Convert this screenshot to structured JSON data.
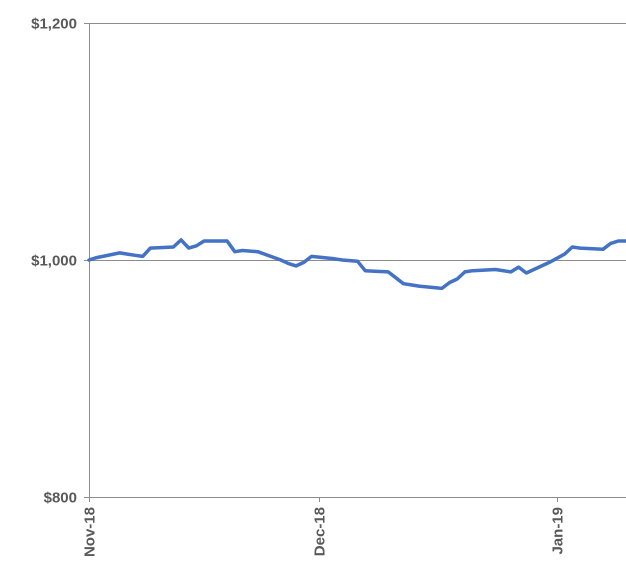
{
  "chart_data": {
    "type": "line",
    "title": "",
    "xlabel": "",
    "ylabel": "",
    "ylim": [
      800,
      1200
    ],
    "y_ticks": [
      "$800",
      "$1,000",
      "$1,200"
    ],
    "y_tick_values": [
      800,
      1000,
      1200
    ],
    "x_ticks": [
      "Nov-18",
      "Dec-18",
      "Jan-19"
    ],
    "x_tick_values": [
      "2018-11-01",
      "2018-12-01",
      "2019-01-01"
    ],
    "xlim": [
      "2018-11-01",
      "2019-01-10"
    ],
    "grid": "horizontal at labeled y ticks",
    "legend": "none",
    "series_color": "#4472C4",
    "series": [
      {
        "x": [
          "2018-11-01",
          "2018-11-02",
          "2018-11-05",
          "2018-11-06",
          "2018-11-07",
          "2018-11-08",
          "2018-11-09",
          "2018-11-12",
          "2018-11-13",
          "2018-11-14",
          "2018-11-15",
          "2018-11-16",
          "2018-11-19",
          "2018-11-20",
          "2018-11-21",
          "2018-11-23",
          "2018-11-26",
          "2018-11-27",
          "2018-11-28",
          "2018-11-29",
          "2018-11-30",
          "2018-12-03",
          "2018-12-04",
          "2018-12-06",
          "2018-12-07",
          "2018-12-10",
          "2018-12-11",
          "2018-12-12",
          "2018-12-13",
          "2018-12-14",
          "2018-12-17",
          "2018-12-18",
          "2018-12-19",
          "2018-12-20",
          "2018-12-21",
          "2018-12-24",
          "2018-12-26",
          "2018-12-27",
          "2018-12-28",
          "2018-12-31",
          "2019-01-02",
          "2019-01-03",
          "2019-01-04",
          "2019-01-07",
          "2019-01-08",
          "2019-01-09",
          "2019-01-10"
        ],
        "values": [
          1000,
          1002,
          1006,
          1005,
          1004,
          1003,
          1010,
          1011,
          1017,
          1010,
          1012,
          1016,
          1016,
          1007,
          1008,
          1007,
          1000,
          997,
          995,
          998,
          1003,
          1001,
          1000,
          999,
          991,
          990,
          985,
          980,
          979,
          978,
          976,
          981,
          984,
          990,
          991,
          992,
          990,
          994,
          989,
          998,
          1005,
          1011,
          1010,
          1009,
          1014,
          1016,
          1016
        ]
      }
    ]
  }
}
